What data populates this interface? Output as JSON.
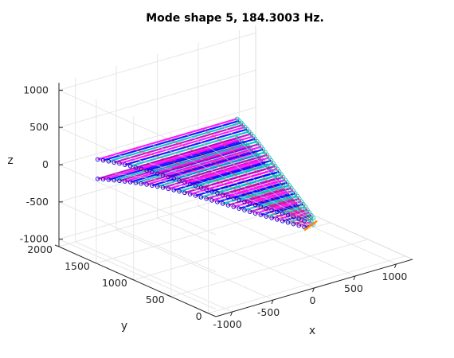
{
  "chart_data": {
    "type": "scatter",
    "title": "Mode shape 5, 184.3003 Hz.",
    "xlabel": "x",
    "ylabel": "y",
    "zlabel": "z",
    "xlim": [
      -1200,
      1200
    ],
    "ylim": [
      -100,
      2000
    ],
    "zlim": [
      -1100,
      1100
    ],
    "xticks": [
      -1000,
      -500,
      0,
      500,
      1000
    ],
    "yticks": [
      0,
      500,
      1000,
      1500,
      2000
    ],
    "zticks": [
      -1000,
      -500,
      0,
      500,
      1000
    ],
    "grid": true,
    "view": "3d",
    "structure": {
      "description_free": true,
      "root_chord_x": [
        -1000,
        700
      ],
      "tip_chord_x": [
        -30,
        80
      ],
      "root_y": 1700,
      "tip_y": 0,
      "upper_surface_z": 120,
      "lower_surface_z": -120
    },
    "colors": {
      "primary": "#bf00bf",
      "secondary": "#ff00ff",
      "accent1": "#00bfbf",
      "accent2": "#0000ff",
      "accent3": "#ff8c00",
      "accent4": "#ff4040",
      "accent5": "#00a000",
      "mesh": "#c8c8c8"
    }
  }
}
